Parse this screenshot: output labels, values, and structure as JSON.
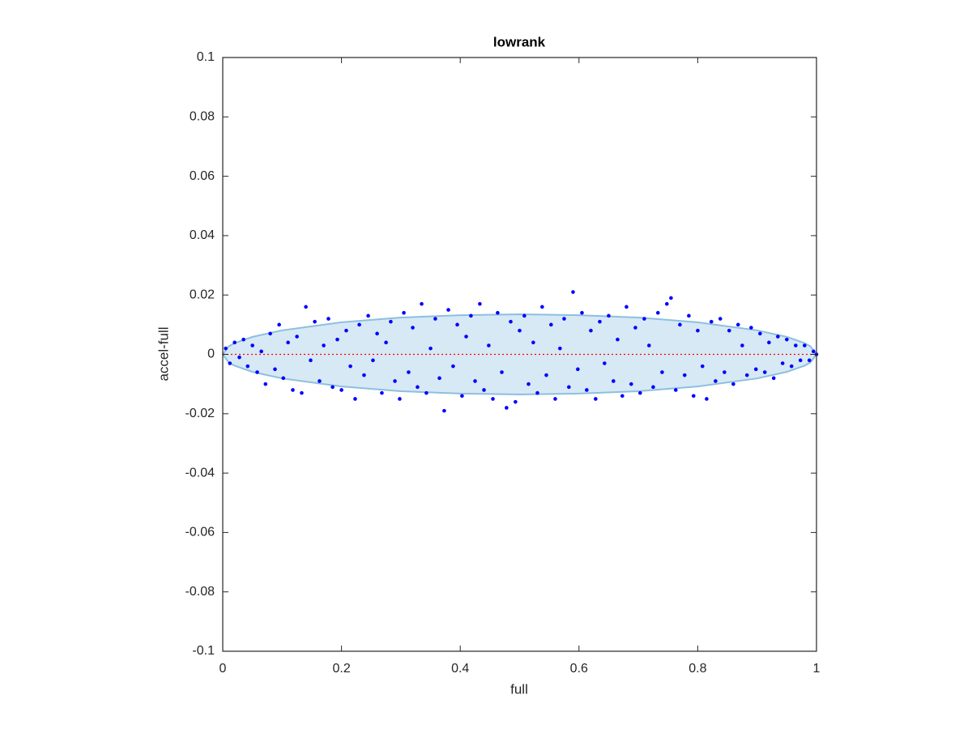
{
  "chart_data": {
    "type": "scatter",
    "title": "lowrank",
    "xlabel": "full",
    "ylabel": "accel-full",
    "xlim": [
      0,
      1
    ],
    "ylim": [
      -0.1,
      0.1
    ],
    "xticks": [
      0,
      0.2,
      0.4,
      0.6,
      0.8,
      1
    ],
    "yticks": [
      -0.1,
      -0.08,
      -0.06,
      -0.04,
      -0.02,
      0,
      0.02,
      0.04,
      0.06,
      0.08,
      0.1
    ],
    "grid": false,
    "box": true,
    "series": [
      {
        "color": "#0000ff",
        "x": [
          0.005,
          0.012,
          0.02,
          0.028,
          0.035,
          0.042,
          0.05,
          0.058,
          0.065,
          0.072,
          0.08,
          0.088,
          0.095,
          0.102,
          0.11,
          0.118,
          0.125,
          0.133,
          0.14,
          0.148,
          0.155,
          0.163,
          0.17,
          0.178,
          0.185,
          0.193,
          0.2,
          0.208,
          0.215,
          0.223,
          0.23,
          0.238,
          0.245,
          0.253,
          0.26,
          0.268,
          0.275,
          0.283,
          0.29,
          0.298,
          0.305,
          0.313,
          0.32,
          0.328,
          0.335,
          0.343,
          0.35,
          0.358,
          0.365,
          0.373,
          0.38,
          0.388,
          0.395,
          0.403,
          0.41,
          0.418,
          0.425,
          0.433,
          0.44,
          0.448,
          0.455,
          0.463,
          0.47,
          0.478,
          0.485,
          0.493,
          0.5,
          0.508,
          0.515,
          0.523,
          0.53,
          0.538,
          0.545,
          0.553,
          0.56,
          0.568,
          0.575,
          0.583,
          0.59,
          0.598,
          0.605,
          0.613,
          0.62,
          0.628,
          0.635,
          0.643,
          0.65,
          0.658,
          0.665,
          0.673,
          0.68,
          0.688,
          0.695,
          0.703,
          0.71,
          0.718,
          0.725,
          0.733,
          0.74,
          0.748,
          0.755,
          0.763,
          0.77,
          0.778,
          0.785,
          0.793,
          0.8,
          0.808,
          0.815,
          0.823,
          0.83,
          0.838,
          0.845,
          0.853,
          0.86,
          0.868,
          0.875,
          0.883,
          0.89,
          0.898,
          0.905,
          0.913,
          0.92,
          0.928,
          0.935,
          0.943,
          0.95,
          0.958,
          0.965,
          0.973,
          0.98,
          0.988,
          0.995,
          1.0
        ],
        "values": [
          0.002,
          -0.003,
          0.004,
          -0.001,
          0.005,
          -0.004,
          0.003,
          -0.006,
          0.001,
          -0.01,
          0.007,
          -0.005,
          0.01,
          -0.008,
          0.004,
          -0.012,
          0.006,
          -0.013,
          0.016,
          -0.002,
          0.011,
          -0.009,
          0.003,
          0.012,
          -0.011,
          0.005,
          -0.012,
          0.008,
          -0.004,
          -0.015,
          0.01,
          -0.007,
          0.013,
          -0.002,
          0.007,
          -0.013,
          0.004,
          0.011,
          -0.009,
          -0.015,
          0.014,
          -0.006,
          0.009,
          -0.011,
          0.017,
          -0.013,
          0.002,
          0.012,
          -0.008,
          -0.019,
          0.015,
          -0.004,
          0.01,
          -0.014,
          0.006,
          0.013,
          -0.009,
          0.017,
          -0.012,
          0.003,
          -0.015,
          0.014,
          -0.006,
          -0.018,
          0.011,
          -0.016,
          0.008,
          0.013,
          -0.01,
          0.004,
          -0.013,
          0.016,
          -0.007,
          0.01,
          -0.015,
          0.002,
          0.012,
          -0.011,
          0.021,
          -0.005,
          0.014,
          -0.012,
          0.008,
          -0.015,
          0.011,
          -0.003,
          0.013,
          -0.009,
          0.005,
          -0.014,
          0.016,
          -0.01,
          0.009,
          -0.013,
          0.012,
          0.003,
          -0.011,
          0.014,
          -0.006,
          0.017,
          0.019,
          -0.012,
          0.01,
          -0.007,
          0.013,
          -0.014,
          0.008,
          -0.004,
          -0.015,
          0.011,
          -0.009,
          0.012,
          -0.006,
          0.008,
          -0.01,
          0.01,
          0.003,
          -0.007,
          0.009,
          -0.005,
          0.007,
          -0.006,
          0.004,
          -0.008,
          0.006,
          -0.003,
          0.005,
          -0.004,
          0.003,
          -0.002,
          0.003,
          -0.002,
          0.001,
          0.0
        ]
      }
    ],
    "envelope": {
      "color": "#d6e9f5",
      "edge_color": "#8dbfe0",
      "x": [
        0,
        0.01,
        0.02,
        0.05,
        0.1,
        0.2,
        0.3,
        0.4,
        0.5,
        0.6,
        0.7,
        0.8,
        0.9,
        0.95,
        0.98,
        0.99,
        1
      ],
      "upper": [
        0,
        0.0027,
        0.0038,
        0.0059,
        0.0081,
        0.0108,
        0.0124,
        0.0132,
        0.0135,
        0.0132,
        0.0124,
        0.0108,
        0.0081,
        0.0059,
        0.0038,
        0.0027,
        0
      ],
      "lower": [
        0,
        -0.0027,
        -0.0038,
        -0.0059,
        -0.0081,
        -0.0108,
        -0.0124,
        -0.0132,
        -0.0135,
        -0.0132,
        -0.0124,
        -0.0108,
        -0.0081,
        -0.0059,
        -0.0038,
        -0.0027,
        0
      ]
    },
    "reference_line": {
      "y": 0,
      "color": "#ff0000",
      "style": "dotted"
    }
  }
}
